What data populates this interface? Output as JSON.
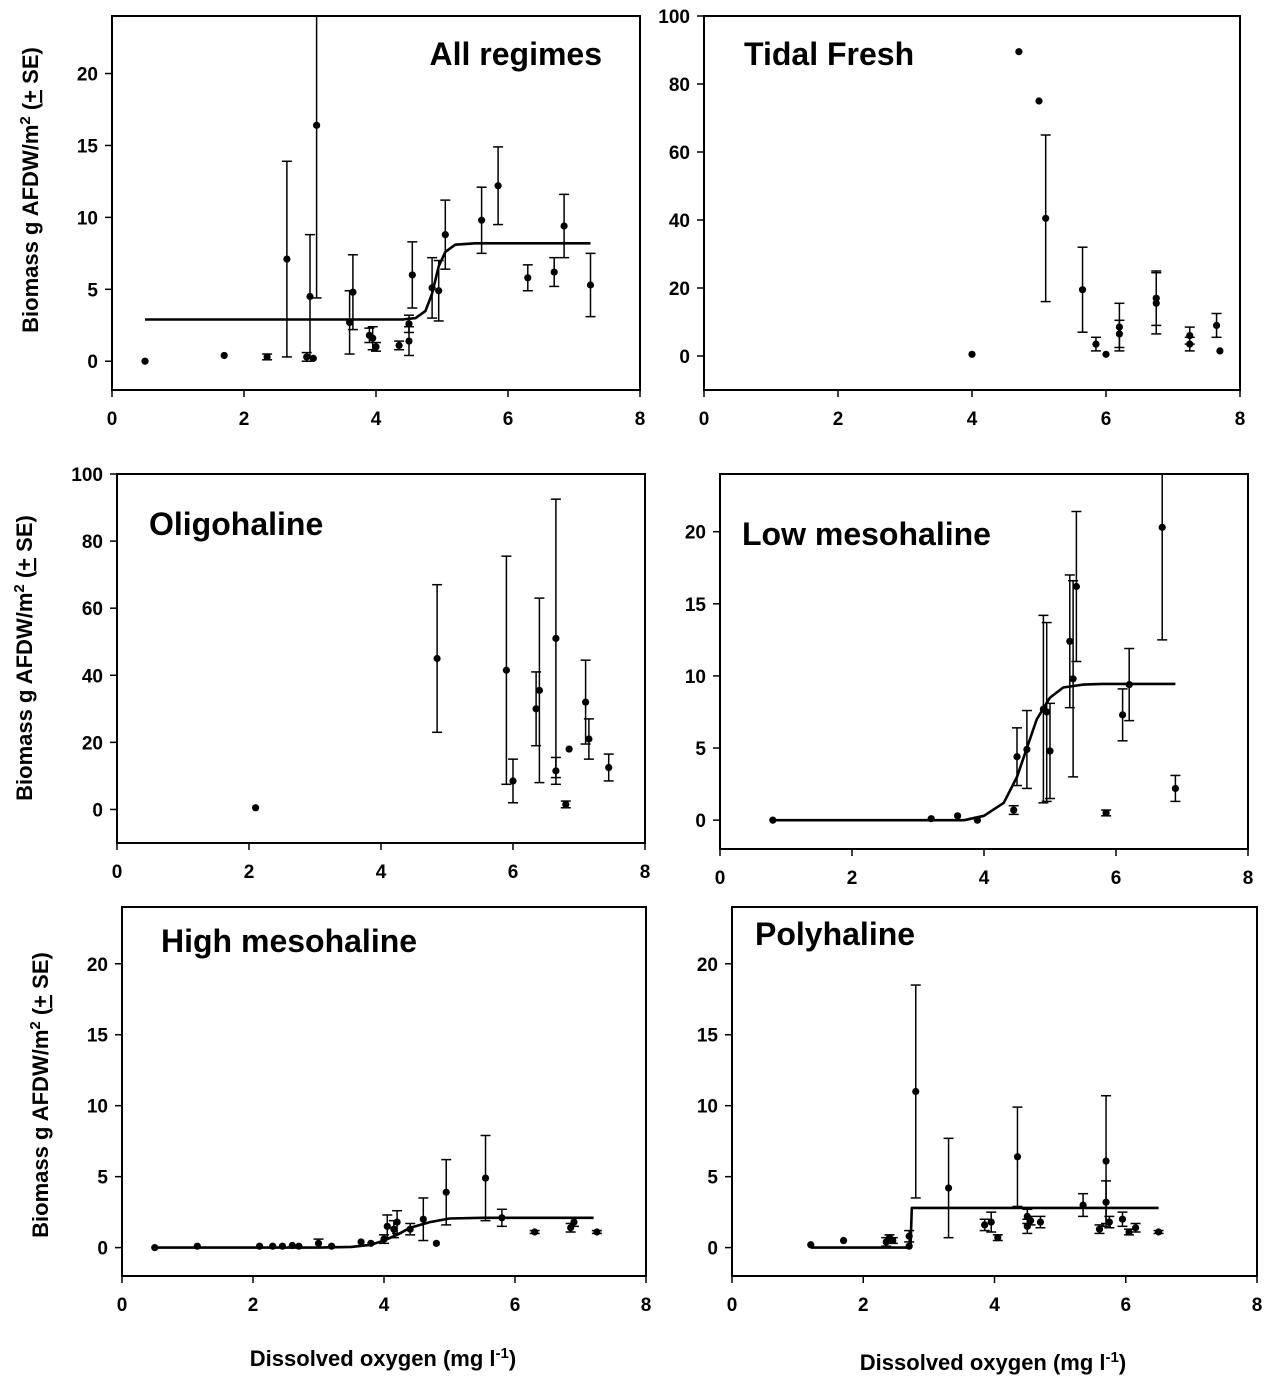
{
  "figure": {
    "y_axis_label_text": "Biomass g AFDW/m",
    "y_axis_label_suffix": " (",
    "y_axis_label_pm": "+",
    "y_axis_label_end": " SE)",
    "y_axis_label_sup": "2",
    "x_axis_label_text": "Dissolved oxygen (mg l",
    "x_axis_label_sup": "-1",
    "x_axis_label_end": ")"
  },
  "chart_data": [
    {
      "type": "scatter",
      "title": "All regimes",
      "xlim": [
        0,
        8
      ],
      "xticks": [
        0,
        2,
        4,
        6,
        8
      ],
      "ylim": [
        -2,
        24
      ],
      "yticks": [
        0,
        5,
        10,
        15,
        20
      ],
      "grid": false,
      "points": [
        {
          "x": 0.5,
          "y": 0.0
        },
        {
          "x": 1.7,
          "y": 0.4
        },
        {
          "x": 2.35,
          "y": 0.3,
          "se": 0.2
        },
        {
          "x": 2.65,
          "y": 7.1,
          "se": 6.8
        },
        {
          "x": 2.95,
          "y": 0.3,
          "se": 0.3
        },
        {
          "x": 3.0,
          "y": 4.5,
          "se": 4.3
        },
        {
          "x": 3.05,
          "y": 0.2
        },
        {
          "x": 3.1,
          "y": 16.4,
          "se": 12.0
        },
        {
          "x": 3.6,
          "y": 2.7,
          "se": 2.2
        },
        {
          "x": 3.65,
          "y": 4.8,
          "se": 2.6
        },
        {
          "x": 3.9,
          "y": 1.8,
          "se": 0.5
        },
        {
          "x": 3.95,
          "y": 1.6,
          "se": 0.8
        },
        {
          "x": 4.0,
          "y": 1.0,
          "se": 0.3
        },
        {
          "x": 4.35,
          "y": 1.1,
          "se": 0.3
        },
        {
          "x": 4.5,
          "y": 2.6,
          "se": 0.6
        },
        {
          "x": 4.5,
          "y": 1.4,
          "se": 1.0
        },
        {
          "x": 4.55,
          "y": 6.0,
          "se": 2.3
        },
        {
          "x": 4.85,
          "y": 5.1,
          "se": 2.1
        },
        {
          "x": 4.95,
          "y": 4.9,
          "se": 2.1
        },
        {
          "x": 5.05,
          "y": 8.8,
          "se": 2.4
        },
        {
          "x": 5.6,
          "y": 9.8,
          "se": 2.3
        },
        {
          "x": 5.85,
          "y": 12.2,
          "se": 2.7
        },
        {
          "x": 6.3,
          "y": 5.8,
          "se": 0.9
        },
        {
          "x": 6.7,
          "y": 6.2,
          "se": 1.0
        },
        {
          "x": 6.85,
          "y": 9.4,
          "se": 2.2
        },
        {
          "x": 7.25,
          "y": 5.3,
          "se": 2.2
        }
      ],
      "fit": {
        "x": [
          0.5,
          4.4,
          4.6,
          4.75,
          4.85,
          4.95,
          5.05,
          5.2,
          5.5,
          7.25
        ],
        "y": [
          2.9,
          2.9,
          3.0,
          3.5,
          4.7,
          6.6,
          7.6,
          8.1,
          8.2,
          8.2
        ]
      }
    },
    {
      "type": "scatter",
      "title": "Tidal Fresh",
      "xlim": [
        0,
        8
      ],
      "xticks": [
        0,
        2,
        4,
        6,
        8
      ],
      "ylim": [
        -10,
        100
      ],
      "yticks": [
        0,
        20,
        40,
        60,
        80,
        100
      ],
      "grid": false,
      "points": [
        {
          "x": 4.0,
          "y": 0.5
        },
        {
          "x": 4.7,
          "y": 89.5
        },
        {
          "x": 5.0,
          "y": 75.0
        },
        {
          "x": 5.1,
          "y": 40.5,
          "se": 24.5
        },
        {
          "x": 5.65,
          "y": 19.5,
          "se": 12.5
        },
        {
          "x": 5.85,
          "y": 3.5,
          "se": 2.0
        },
        {
          "x": 6.0,
          "y": 0.5
        },
        {
          "x": 6.2,
          "y": 8.5,
          "se": 7.0
        },
        {
          "x": 6.2,
          "y": 6.5,
          "se": 4.0
        },
        {
          "x": 6.75,
          "y": 17.0,
          "se": 8.0
        },
        {
          "x": 6.75,
          "y": 15.5,
          "se": 9.0
        },
        {
          "x": 7.25,
          "y": 6.0,
          "se": 2.5
        },
        {
          "x": 7.25,
          "y": 3.5,
          "se": 2.0
        },
        {
          "x": 7.65,
          "y": 9.0,
          "se": 3.5
        },
        {
          "x": 7.7,
          "y": 1.5
        }
      ]
    },
    {
      "type": "scatter",
      "title": "Oligohaline",
      "xlim": [
        0,
        8
      ],
      "xticks": [
        0,
        2,
        4,
        6,
        8
      ],
      "ylim": [
        -10,
        100
      ],
      "yticks": [
        0,
        20,
        40,
        60,
        80,
        100
      ],
      "grid": false,
      "points": [
        {
          "x": 2.1,
          "y": 0.5
        },
        {
          "x": 4.85,
          "y": 45.0,
          "se": 22.0
        },
        {
          "x": 5.9,
          "y": 41.5,
          "se": 34.0
        },
        {
          "x": 6.0,
          "y": 8.5,
          "se": 6.5
        },
        {
          "x": 6.35,
          "y": 30.0,
          "se": 11.0
        },
        {
          "x": 6.4,
          "y": 35.5,
          "se": 27.5
        },
        {
          "x": 6.65,
          "y": 51.0,
          "se": 41.5
        },
        {
          "x": 6.65,
          "y": 11.5,
          "se": 4.0
        },
        {
          "x": 6.8,
          "y": 1.5,
          "se": 1.0
        },
        {
          "x": 6.85,
          "y": 18.0
        },
        {
          "x": 7.1,
          "y": 32.0,
          "se": 12.5
        },
        {
          "x": 7.15,
          "y": 21.0,
          "se": 6.0
        },
        {
          "x": 7.45,
          "y": 12.5,
          "se": 4.0
        }
      ]
    },
    {
      "type": "scatter",
      "title": "Low mesohaline",
      "xlim": [
        0,
        8
      ],
      "xticks": [
        0,
        2,
        4,
        6,
        8
      ],
      "ylim": [
        -2,
        24
      ],
      "yticks": [
        0,
        5,
        10,
        15,
        20
      ],
      "grid": false,
      "points": [
        {
          "x": 0.8,
          "y": 0.0
        },
        {
          "x": 3.2,
          "y": 0.1
        },
        {
          "x": 3.6,
          "y": 0.3
        },
        {
          "x": 3.9,
          "y": 0.0
        },
        {
          "x": 4.45,
          "y": 0.7,
          "se": 0.3
        },
        {
          "x": 4.5,
          "y": 4.4,
          "se": 2.0
        },
        {
          "x": 4.65,
          "y": 4.9,
          "se": 2.7
        },
        {
          "x": 4.9,
          "y": 7.7,
          "se": 6.5
        },
        {
          "x": 4.95,
          "y": 7.5,
          "se": 6.2
        },
        {
          "x": 5.0,
          "y": 4.8,
          "se": 3.3
        },
        {
          "x": 5.3,
          "y": 12.4,
          "se": 4.6
        },
        {
          "x": 5.35,
          "y": 9.8,
          "se": 6.8
        },
        {
          "x": 5.4,
          "y": 16.2,
          "se": 5.2
        },
        {
          "x": 5.85,
          "y": 0.5,
          "se": 0.2
        },
        {
          "x": 6.1,
          "y": 7.3,
          "se": 1.8
        },
        {
          "x": 6.2,
          "y": 9.4,
          "se": 2.5
        },
        {
          "x": 6.7,
          "y": 20.3,
          "se": 7.8
        },
        {
          "x": 6.9,
          "y": 2.2,
          "se": 0.9
        }
      ],
      "fit": {
        "x": [
          0.8,
          3.7,
          4.0,
          4.3,
          4.5,
          4.65,
          4.8,
          5.0,
          5.2,
          5.5,
          5.8,
          6.9
        ],
        "y": [
          0.0,
          0.0,
          0.3,
          1.2,
          3.0,
          5.0,
          7.0,
          8.5,
          9.2,
          9.4,
          9.45,
          9.45
        ]
      }
    },
    {
      "type": "scatter",
      "title": "High mesohaline",
      "xlim": [
        0,
        8
      ],
      "xticks": [
        0,
        2,
        4,
        6,
        8
      ],
      "ylim": [
        -2,
        24
      ],
      "yticks": [
        0,
        5,
        10,
        15,
        20
      ],
      "grid": false,
      "points": [
        {
          "x": 0.5,
          "y": 0.0
        },
        {
          "x": 1.15,
          "y": 0.1
        },
        {
          "x": 2.1,
          "y": 0.1
        },
        {
          "x": 2.3,
          "y": 0.1
        },
        {
          "x": 2.45,
          "y": 0.1
        },
        {
          "x": 2.6,
          "y": 0.15
        },
        {
          "x": 2.7,
          "y": 0.1
        },
        {
          "x": 3.0,
          "y": 0.3,
          "se": 0.3
        },
        {
          "x": 3.2,
          "y": 0.1
        },
        {
          "x": 3.65,
          "y": 0.4
        },
        {
          "x": 3.8,
          "y": 0.3
        },
        {
          "x": 4.0,
          "y": 0.6,
          "se": 0.3
        },
        {
          "x": 4.05,
          "y": 1.5,
          "se": 0.8
        },
        {
          "x": 4.15,
          "y": 1.3,
          "se": 0.6
        },
        {
          "x": 4.2,
          "y": 1.8,
          "se": 0.8
        },
        {
          "x": 4.4,
          "y": 1.3,
          "se": 0.4
        },
        {
          "x": 4.6,
          "y": 2.0,
          "se": 1.5
        },
        {
          "x": 4.8,
          "y": 0.3
        },
        {
          "x": 4.95,
          "y": 3.9,
          "se": 2.3
        },
        {
          "x": 5.55,
          "y": 4.9,
          "se": 3.0
        },
        {
          "x": 5.8,
          "y": 2.1,
          "se": 0.6
        },
        {
          "x": 6.3,
          "y": 1.1,
          "se": 0.1
        },
        {
          "x": 6.85,
          "y": 1.4,
          "se": 0.3
        },
        {
          "x": 6.9,
          "y": 1.8,
          "se": 0.3
        },
        {
          "x": 7.25,
          "y": 1.1,
          "se": 0.1
        }
      ],
      "fit": {
        "x": [
          0.5,
          3.0,
          3.5,
          3.8,
          4.0,
          4.2,
          4.4,
          4.7,
          5.0,
          5.5,
          7.2
        ],
        "y": [
          0.0,
          0.0,
          0.05,
          0.2,
          0.5,
          0.9,
          1.4,
          1.8,
          2.05,
          2.1,
          2.1
        ]
      }
    },
    {
      "type": "scatter",
      "title": "Polyhaline",
      "xlim": [
        0,
        8
      ],
      "xticks": [
        0,
        2,
        4,
        6,
        8
      ],
      "ylim": [
        -2,
        24
      ],
      "yticks": [
        0,
        5,
        10,
        15,
        20
      ],
      "grid": false,
      "points": [
        {
          "x": 1.2,
          "y": 0.2
        },
        {
          "x": 1.7,
          "y": 0.5
        },
        {
          "x": 2.35,
          "y": 0.4,
          "se": 0.3
        },
        {
          "x": 2.4,
          "y": 0.7,
          "se": 0.2
        },
        {
          "x": 2.45,
          "y": 0.5,
          "se": 0.2
        },
        {
          "x": 2.7,
          "y": 0.8,
          "se": 0.4
        },
        {
          "x": 2.7,
          "y": 0.1
        },
        {
          "x": 2.8,
          "y": 11.0,
          "se": 7.5
        },
        {
          "x": 3.3,
          "y": 4.2,
          "se": 3.5
        },
        {
          "x": 3.85,
          "y": 1.6,
          "se": 0.4
        },
        {
          "x": 3.95,
          "y": 1.8,
          "se": 0.7
        },
        {
          "x": 4.05,
          "y": 0.7,
          "se": 0.2
        },
        {
          "x": 4.35,
          "y": 6.4,
          "se": 3.5
        },
        {
          "x": 4.5,
          "y": 2.2,
          "se": 0.5
        },
        {
          "x": 4.5,
          "y": 1.5,
          "se": 0.5
        },
        {
          "x": 4.55,
          "y": 1.9,
          "se": 0.3
        },
        {
          "x": 4.7,
          "y": 1.8,
          "se": 0.4
        },
        {
          "x": 5.35,
          "y": 3.0,
          "se": 0.8
        },
        {
          "x": 5.6,
          "y": 1.3,
          "se": 0.3
        },
        {
          "x": 5.7,
          "y": 6.1,
          "se": 4.6
        },
        {
          "x": 5.7,
          "y": 3.2,
          "se": 1.5
        },
        {
          "x": 5.75,
          "y": 1.8,
          "se": 0.4
        },
        {
          "x": 5.95,
          "y": 2.0,
          "se": 0.5
        },
        {
          "x": 6.05,
          "y": 1.1,
          "se": 0.2
        },
        {
          "x": 6.15,
          "y": 1.4,
          "se": 0.3
        },
        {
          "x": 6.5,
          "y": 1.1,
          "se": 0.1
        }
      ],
      "fit": {
        "x": [
          1.2,
          2.72,
          2.74,
          6.5
        ],
        "y": [
          0.0,
          0.0,
          2.8,
          2.8
        ]
      }
    }
  ]
}
